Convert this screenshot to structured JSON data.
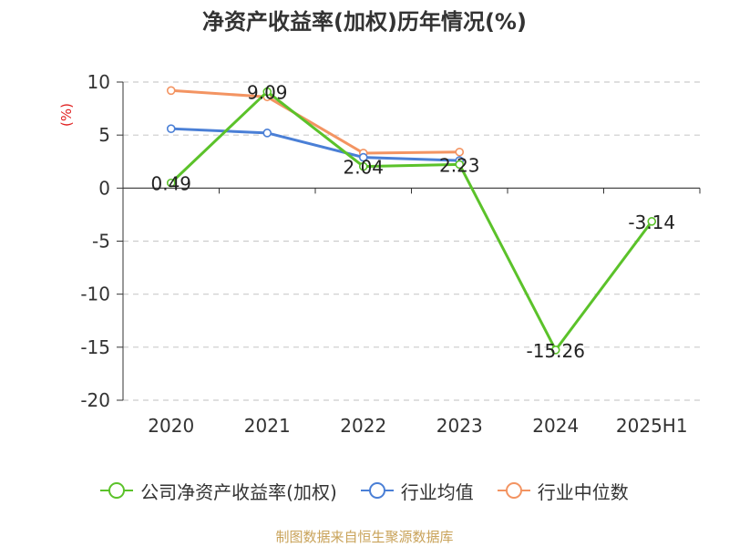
{
  "chart_data": {
    "type": "line",
    "title": "净资产收益率(加权)历年情况(%)",
    "ylabel": "(%)",
    "categories": [
      "2020",
      "2021",
      "2022",
      "2023",
      "2024",
      "2025H1"
    ],
    "ylim": [
      -20,
      10
    ],
    "yticks": [
      10,
      5,
      0,
      -5,
      -10,
      -15,
      -20
    ],
    "grid": true,
    "legend_position": "bottom",
    "series": [
      {
        "name": "公司净资产收益率(加权)",
        "color": "#5bc22a",
        "values": [
          0.49,
          9.09,
          2.04,
          2.23,
          -15.26,
          -3.14
        ],
        "labels": [
          "0.49",
          "9.09",
          "2.04",
          "2.23",
          "-15.26",
          "-3.14"
        ]
      },
      {
        "name": "行业均值",
        "color": "#4a7fd6",
        "values": [
          5.6,
          5.2,
          2.9,
          2.6,
          null,
          null
        ]
      },
      {
        "name": "行业中位数",
        "color": "#f39462",
        "values": [
          9.2,
          8.6,
          3.3,
          3.4,
          null,
          null
        ]
      }
    ]
  },
  "source": "制图数据来自恒生聚源数据库"
}
